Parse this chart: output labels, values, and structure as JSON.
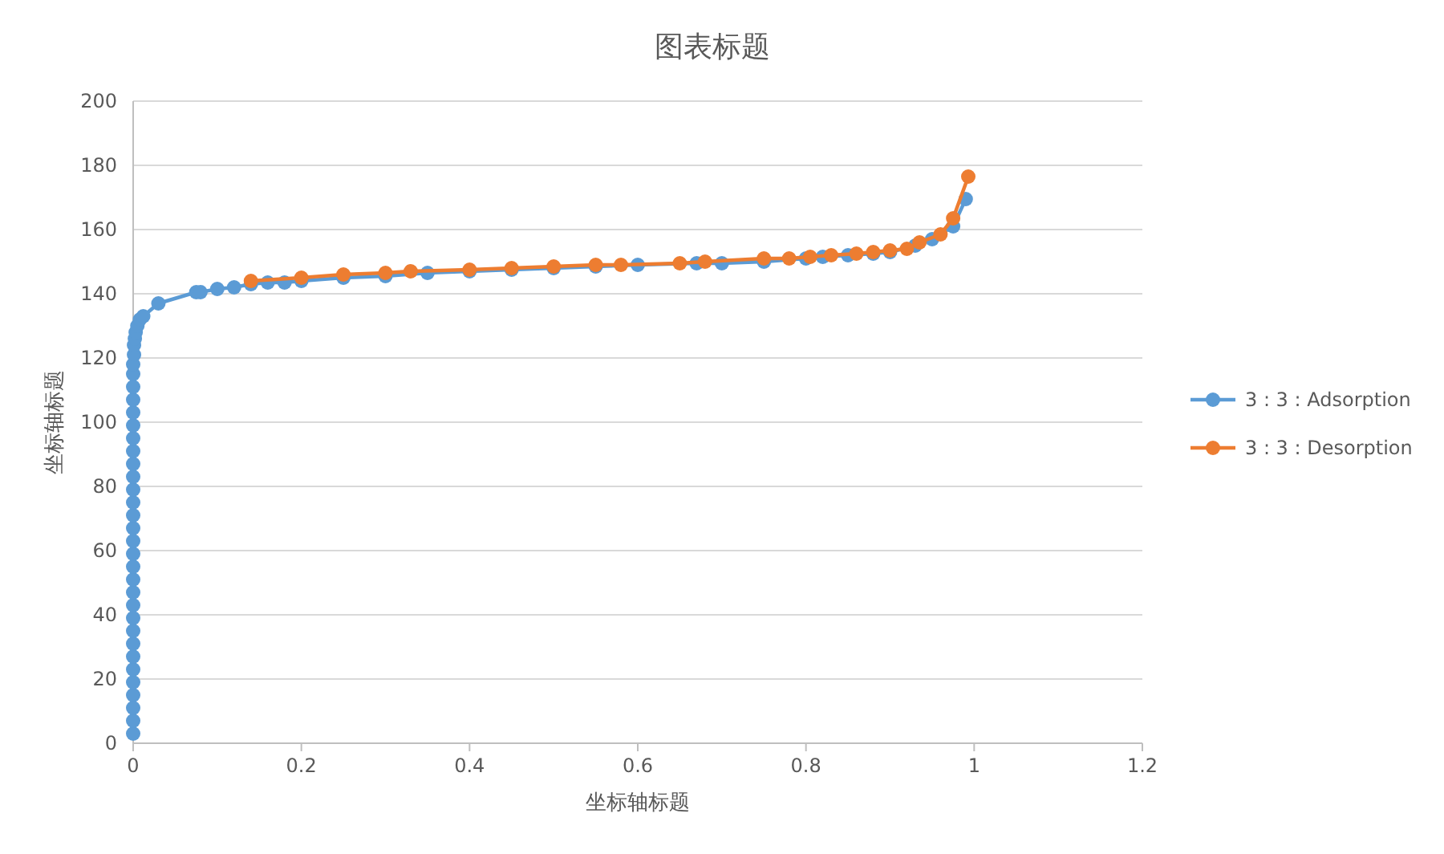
{
  "chart_data": {
    "type": "line",
    "title": "图表标题",
    "xlabel": "坐标轴标题",
    "ylabel": "坐标轴标题",
    "xlim": [
      0,
      1.2
    ],
    "ylim": [
      0,
      200
    ],
    "xticks": [
      0,
      0.2,
      0.4,
      0.6,
      0.8,
      1,
      1.2
    ],
    "yticks": [
      0,
      20,
      40,
      60,
      80,
      100,
      120,
      140,
      160,
      180,
      200
    ],
    "grid": "y",
    "legend": "right",
    "marker": "circle",
    "line_style": "solid",
    "series": [
      {
        "name": "3 : 3 : Adsorption",
        "color": "#5b9bd5",
        "x": [
          0,
          0,
          0,
          0,
          0,
          0,
          0,
          0,
          0,
          0,
          0,
          0,
          0,
          0,
          0,
          0,
          0,
          0,
          0,
          0,
          0,
          0,
          0,
          0,
          0,
          0,
          0,
          0,
          0,
          0,
          0.001,
          0.001,
          0.002,
          0.003,
          0.005,
          0.008,
          0.012,
          0.03,
          0.075,
          0.08,
          0.1,
          0.12,
          0.14,
          0.16,
          0.18,
          0.2,
          0.25,
          0.3,
          0.35,
          0.4,
          0.45,
          0.5,
          0.55,
          0.6,
          0.67,
          0.7,
          0.75,
          0.8,
          0.82,
          0.85,
          0.88,
          0.9,
          0.93,
          0.95,
          0.975,
          0.99
        ],
        "values": [
          3,
          7,
          11,
          15,
          19,
          23,
          27,
          31,
          35,
          39,
          43,
          47,
          51,
          55,
          59,
          63,
          67,
          71,
          75,
          79,
          83,
          87,
          91,
          95,
          99,
          103,
          107,
          111,
          115,
          118,
          121,
          124,
          126,
          128,
          130,
          132,
          133,
          137,
          140.5,
          140.5,
          141.5,
          142,
          143,
          143.5,
          143.5,
          144,
          145,
          145.5,
          146.5,
          147,
          147.5,
          148,
          148.5,
          149,
          149.5,
          149.5,
          150,
          151,
          151.5,
          152,
          152.5,
          153,
          155,
          157,
          161,
          169.5
        ]
      },
      {
        "name": "3 : 3 : Desorption",
        "color": "#ed7d31",
        "x": [
          0.993,
          0.975,
          0.96,
          0.935,
          0.92,
          0.9,
          0.88,
          0.86,
          0.83,
          0.805,
          0.78,
          0.75,
          0.68,
          0.65,
          0.58,
          0.55,
          0.5,
          0.45,
          0.4,
          0.33,
          0.3,
          0.25,
          0.2,
          0.14
        ],
        "values": [
          176.5,
          163.5,
          158.5,
          156,
          154,
          153.5,
          153,
          152.5,
          152,
          151.5,
          151,
          151,
          150,
          149.5,
          149,
          149,
          148.5,
          148,
          147.5,
          147,
          146.5,
          146,
          145,
          144
        ]
      }
    ]
  }
}
